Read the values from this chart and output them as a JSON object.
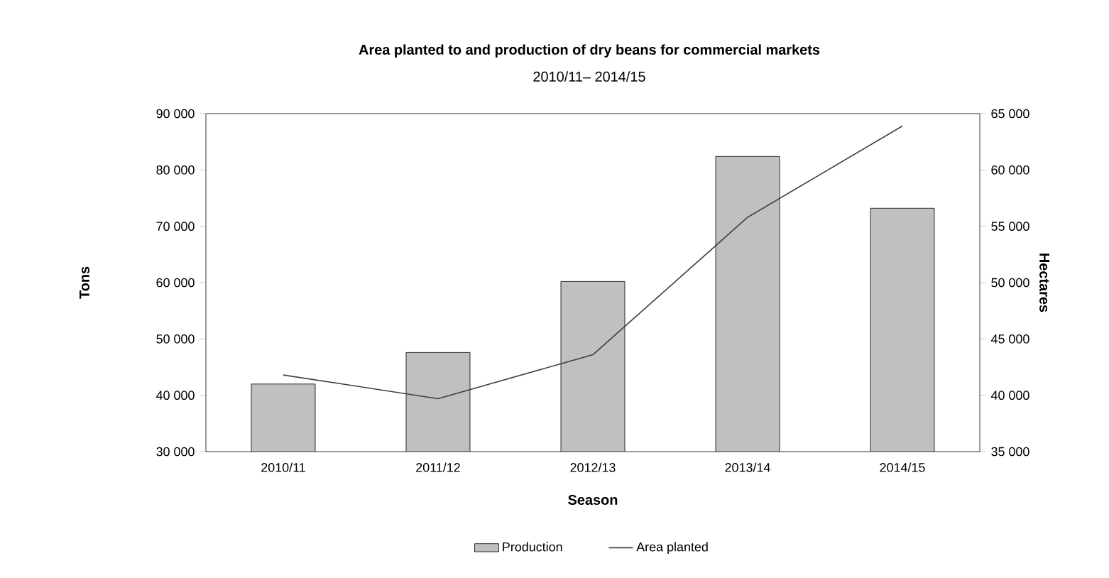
{
  "chart_data": {
    "type": "bar",
    "title": "Area planted to and production of dry beans for commercial markets",
    "subtitle": "2010/11– 2014/15",
    "xlabel": "Season",
    "ylabel": "Tons",
    "y2label": "Hectares",
    "categories": [
      "2010/11",
      "2011/12",
      "2012/13",
      "2013/14",
      "2014/15"
    ],
    "series": [
      {
        "name": "Production",
        "color": "#c0c0c0",
        "values": [
          42000,
          47600,
          60200,
          82400,
          73200
        ]
      },
      {
        "name": "Area planted",
        "type": "line",
        "axis": "y2",
        "color": "#404040",
        "values": [
          41800,
          39700,
          43600,
          55800,
          63900
        ]
      }
    ],
    "ylim": [
      30000,
      90000
    ],
    "yticks": [
      {
        "value": 30000,
        "label": "30 000"
      },
      {
        "value": 40000,
        "label": "40 000"
      },
      {
        "value": 50000,
        "label": "50 000"
      },
      {
        "value": 60000,
        "label": "60 000"
      },
      {
        "value": 70000,
        "label": "70 000"
      },
      {
        "value": 80000,
        "label": "80 000"
      },
      {
        "value": 90000,
        "label": "90 000"
      }
    ],
    "y2lim": [
      35000,
      65000
    ],
    "y2ticks": [
      {
        "value": 35000,
        "label": "35 000"
      },
      {
        "value": 40000,
        "label": "40 000"
      },
      {
        "value": 45000,
        "label": "45 000"
      },
      {
        "value": 50000,
        "label": "50 000"
      },
      {
        "value": 55000,
        "label": "55 000"
      },
      {
        "value": 60000,
        "label": "60 000"
      },
      {
        "value": 65000,
        "label": "65 000"
      }
    ],
    "legend": "bottom",
    "grid": false
  }
}
